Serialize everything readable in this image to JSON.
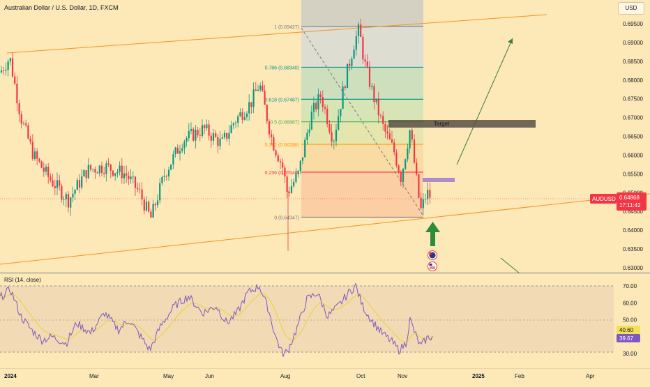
{
  "header": {
    "symbol_title": "Australian Dollar / U.S. Dollar, 1D, FXCM",
    "currency": "USD"
  },
  "price_axis": {
    "ticks": [
      "0.69500",
      "0.69000",
      "0.68500",
      "0.68000",
      "0.67500",
      "0.67000",
      "0.66500",
      "0.66000",
      "0.65500",
      "0.65000",
      "0.64500",
      "0.64000",
      "0.63500",
      "0.63000"
    ],
    "tick_values": [
      0.695,
      0.69,
      0.685,
      0.68,
      0.675,
      0.67,
      0.665,
      0.66,
      0.655,
      0.65,
      0.645,
      0.64,
      0.635,
      0.63
    ]
  },
  "current_price": {
    "ticker": "AUDUSD",
    "price": "0.64868",
    "countdown": "17:11:42",
    "value": 0.64868
  },
  "fibonacci": {
    "levels": [
      {
        "label": "1 (0.69427)",
        "value": 0.69427,
        "color": "#787b86"
      },
      {
        "label": "0.786 (0.68340)",
        "value": 0.6834,
        "color": "#089981"
      },
      {
        "label": "0.618 (0.67487)",
        "value": 0.67487,
        "color": "#089981"
      },
      {
        "label": "0.5 (0.66887)",
        "value": 0.66887,
        "color": "#4caf50"
      },
      {
        "label": "0.382 (0.66288)",
        "value": 0.66288,
        "color": "#ff9800"
      },
      {
        "label": "0.236 (0.65546)",
        "value": 0.65546,
        "color": "#f23645"
      },
      {
        "label": "0 (0.64347)",
        "value": 0.64347,
        "color": "#787b86"
      }
    ]
  },
  "annotations": {
    "target_label": "Target"
  },
  "rsi": {
    "title": "RSI (14, close)",
    "ticks": [
      "70.00",
      "60.00",
      "50.00",
      "40.00",
      "30.00"
    ],
    "tick_values": [
      70,
      60,
      50,
      40,
      30
    ],
    "rsi_value": "39.67",
    "ma_value": "40.60"
  },
  "time_axis": {
    "labels": [
      "2024",
      "Mar",
      "May",
      "Jun",
      "Aug",
      "Oct",
      "Nov",
      "2025",
      "Feb",
      "Apr"
    ]
  },
  "colors": {
    "up": "#089981",
    "down": "#f23645",
    "trendline": "#f7931e",
    "rsi_line": "#7e57c2",
    "rsi_ma": "#f0d03c",
    "price_badge": "#f23645"
  }
}
